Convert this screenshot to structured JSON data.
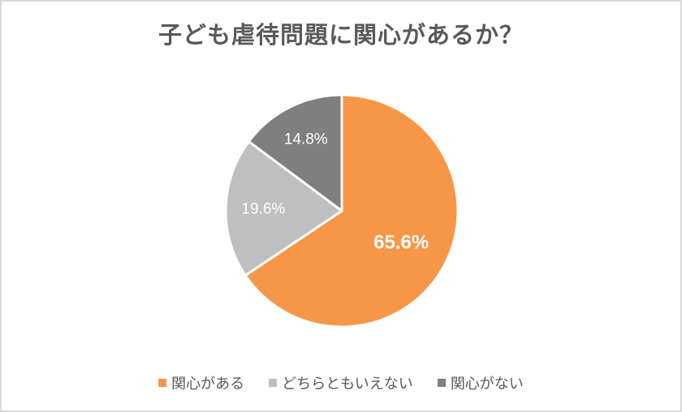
{
  "chart_data": {
    "type": "pie",
    "title": "子ども虐待問題に関心があるか？",
    "categories": [
      "関心がある",
      "どちらともいえない",
      "関心がない"
    ],
    "values": [
      65.6,
      19.6,
      14.8
    ],
    "labels": [
      "65.6%",
      "19.6%",
      "14.8%"
    ],
    "colors": [
      "#f79646",
      "#bfbfbf",
      "#7f7f7f"
    ],
    "start_angle_deg": 0,
    "direction": "clockwise",
    "legend_position": "bottom",
    "unit": "%"
  },
  "legend": {
    "items": [
      {
        "label": "関心がある",
        "color": "#f79646"
      },
      {
        "label": "どちらともいえない",
        "color": "#bfbfbf"
      },
      {
        "label": "関心がない",
        "color": "#7f7f7f"
      }
    ]
  }
}
